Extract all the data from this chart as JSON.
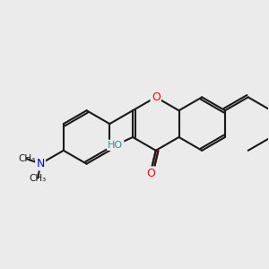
{
  "background_color": "#ebebeb",
  "bond_color": "#1a1a1a",
  "bond_width": 1.5,
  "atom_colors": {
    "O": "#ff0000",
    "N": "#0000ff",
    "C": "#1a1a1a",
    "HO": "#2f8f8f"
  },
  "font_size": 9,
  "fig_size": [
    3.0,
    3.0
  ],
  "dpi": 100
}
